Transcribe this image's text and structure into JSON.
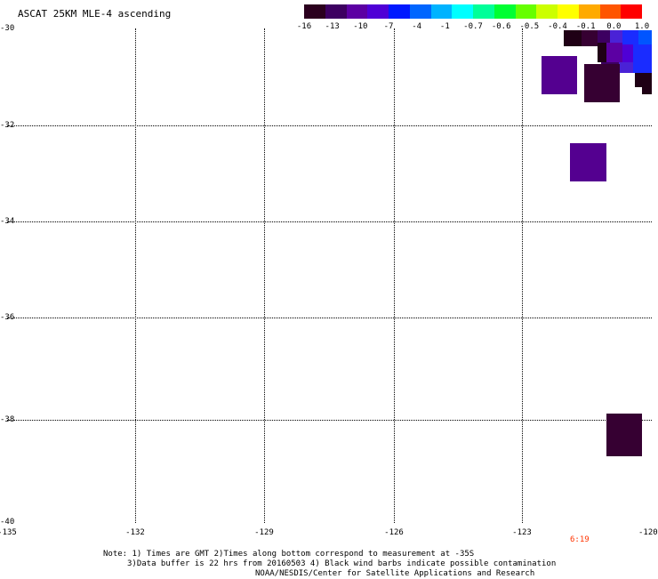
{
  "title": "ASCAT 25KM MLE-4 ascending",
  "colorbar": {
    "tick_labels": [
      "-16",
      "-13",
      "-10",
      "-7",
      "-4",
      "-1",
      "-0.7",
      "-0.6",
      "-0.5",
      "-0.4",
      "-0.1",
      "0.0",
      "1.0"
    ],
    "colors": [
      "#2b001e",
      "#3d0061",
      "#5c00a3",
      "#4f00d6",
      "#0019ff",
      "#0066ff",
      "#00b3ff",
      "#00ffff",
      "#00ff99",
      "#00ff33",
      "#66ff00",
      "#ccff00",
      "#ffff00",
      "#ffaa00",
      "#ff5500",
      "#ff0000"
    ]
  },
  "axes": {
    "y_labels": [
      "-30",
      "-32",
      "-34",
      "-36",
      "-38",
      "-40"
    ],
    "x_labels": [
      "-135",
      "-132",
      "-129",
      "-126",
      "-123",
      "-120"
    ]
  },
  "swath_time": "6:19",
  "notes": {
    "line1": "Note: 1) Times are GMT 2)Times along bottom correspond to measurement at -35S",
    "line2": "3)Data buffer is 22 hrs from 20160503 4) Black wind barbs indicate possible contamination",
    "line3": "NOAA/NESDIS/Center for Satellite Applications and Research"
  },
  "data_colors": {
    "very_low": "#1f0015",
    "low": "#360032",
    "mid": "#540090",
    "purple_blue": "#4a22d6",
    "blue": "#1a2cff",
    "bright_blue": "#0055ff"
  }
}
